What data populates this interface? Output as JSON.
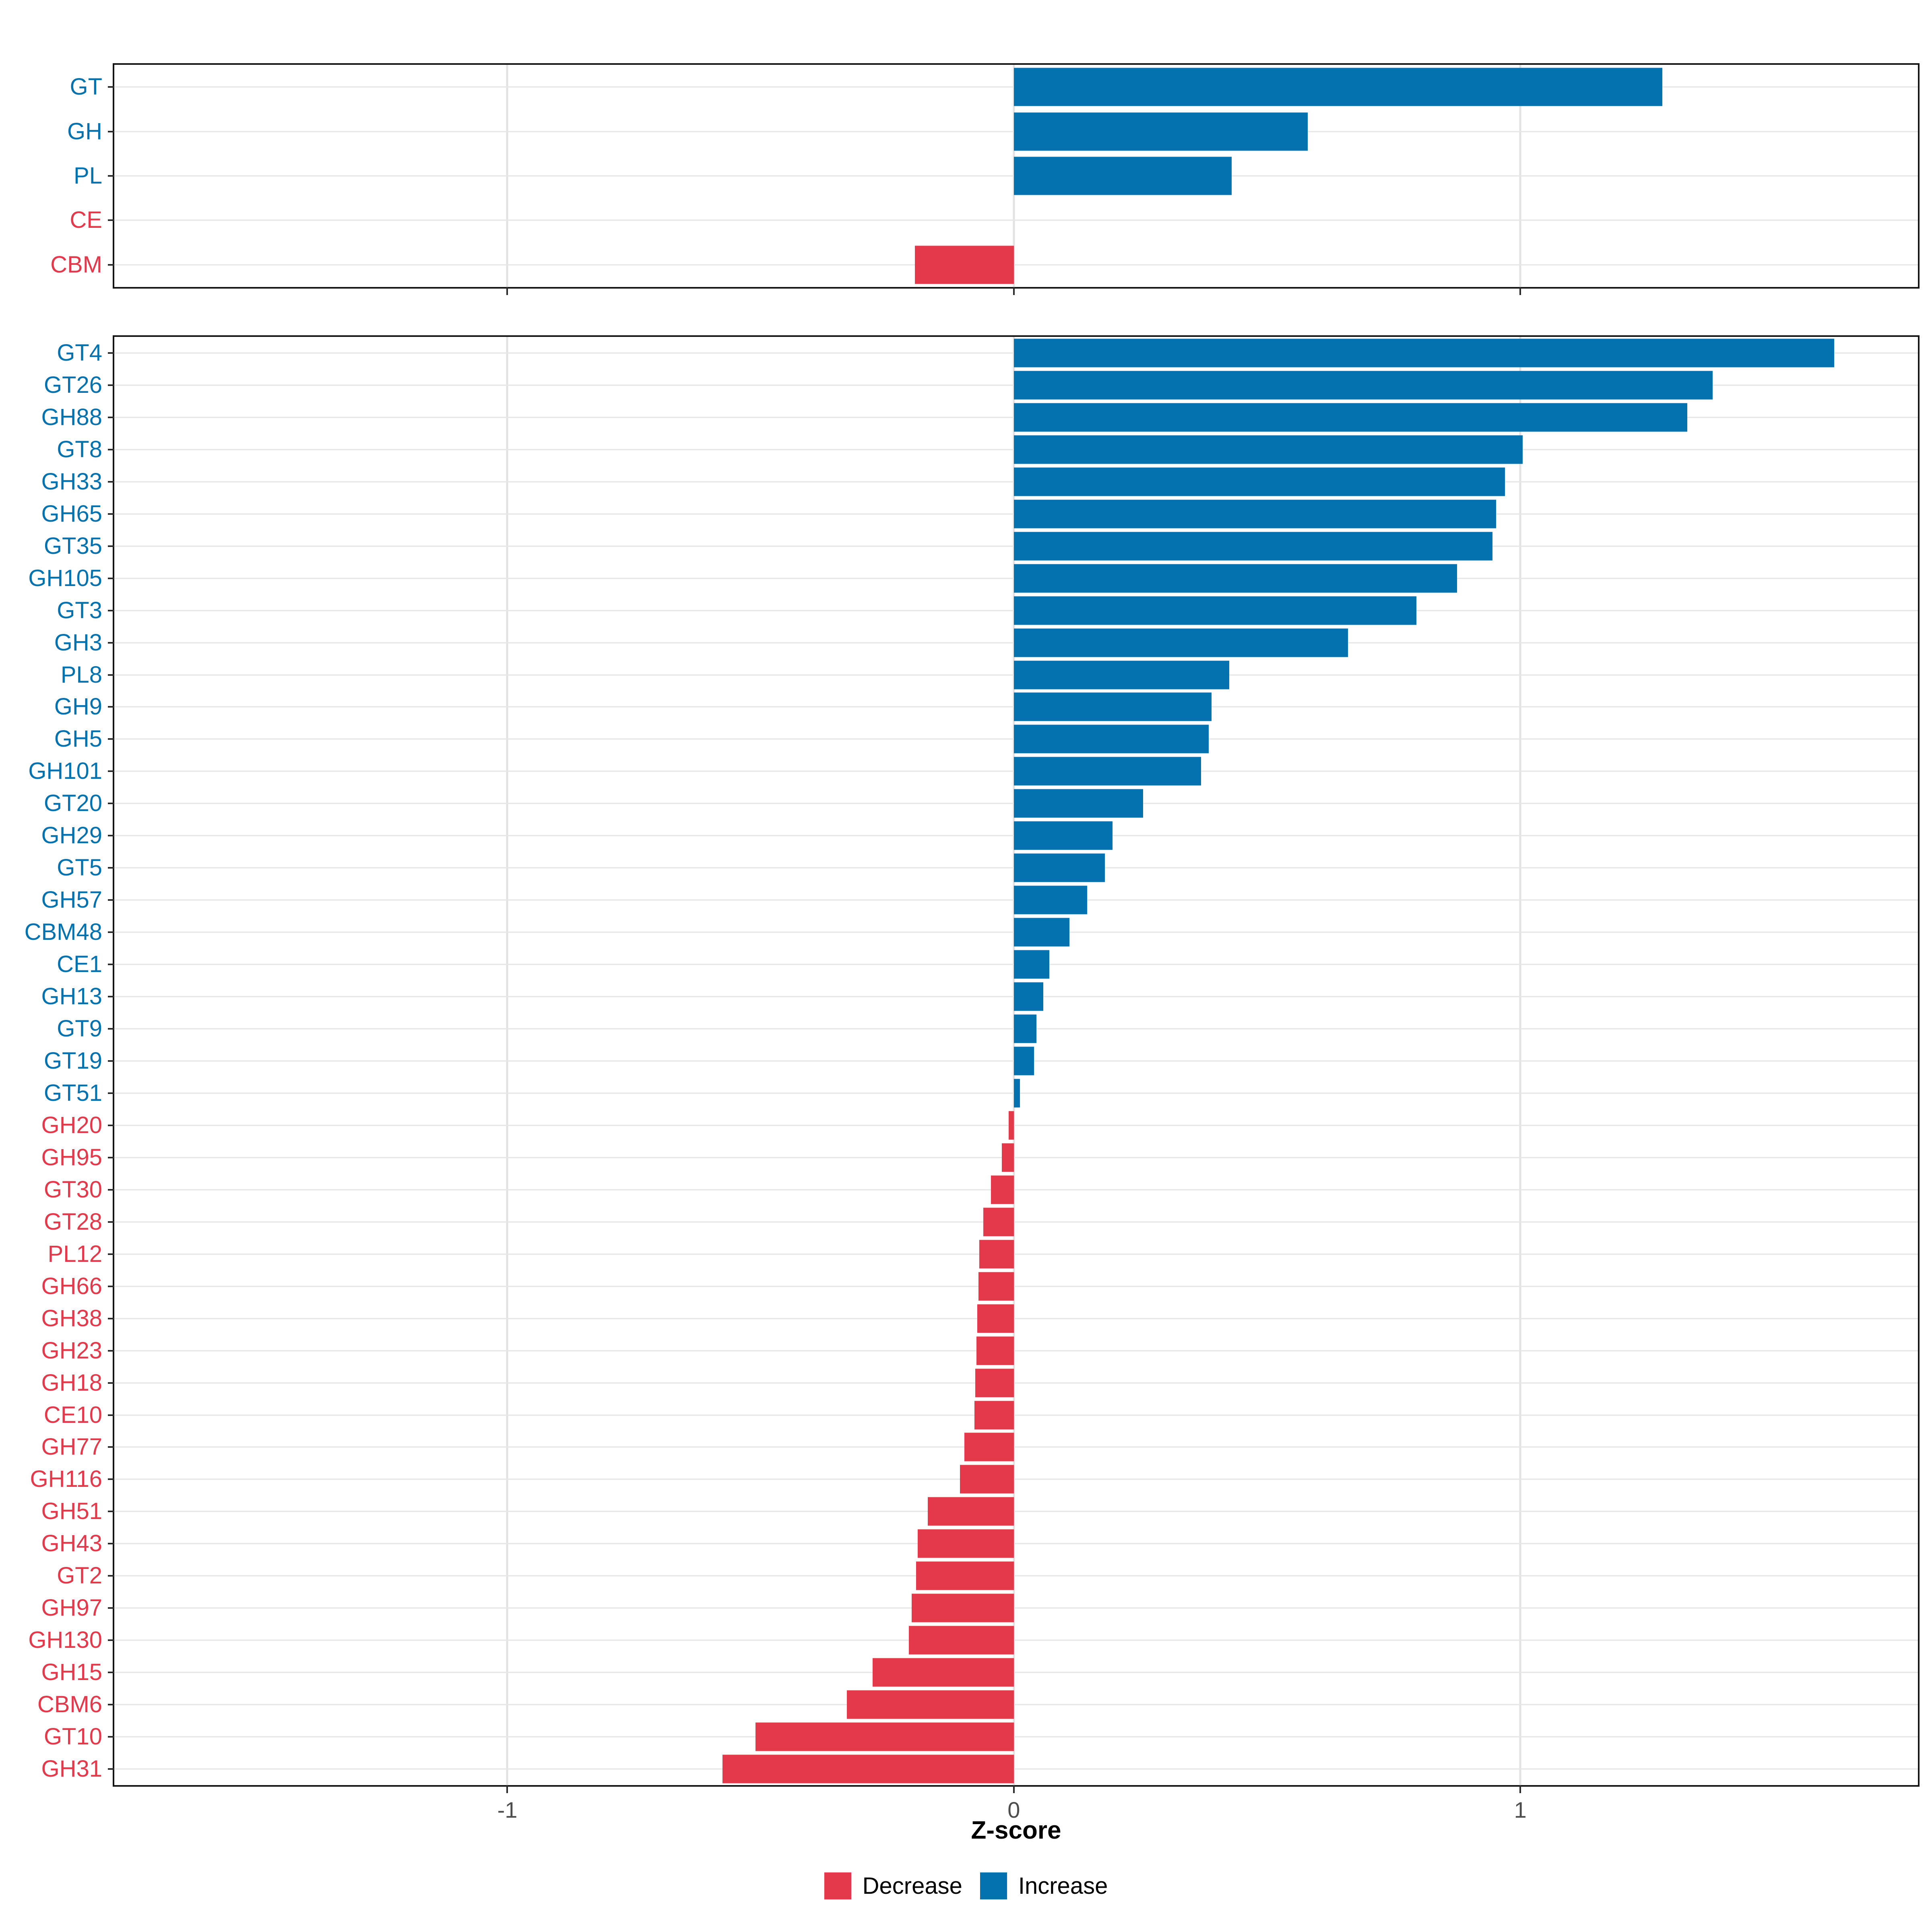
{
  "chart_data": [
    {
      "id": "families",
      "type": "bar",
      "orientation": "horizontal",
      "panel": "top",
      "categories": [
        "GT",
        "GH",
        "PL",
        "CE",
        "CBM"
      ],
      "values": [
        1.28,
        0.58,
        0.43,
        0.0,
        -0.195
      ],
      "groups": [
        "inc",
        "inc",
        "inc",
        "dec",
        "dec"
      ],
      "grid": "major-x-only",
      "show_x_tick_labels": false
    },
    {
      "id": "subfamilies",
      "type": "bar",
      "orientation": "horizontal",
      "panel": "bottom",
      "categories": [
        "GT4",
        "GT26",
        "GH88",
        "GT8",
        "GH33",
        "GH65",
        "GT35",
        "GH105",
        "GT3",
        "GH3",
        "PL8",
        "GH9",
        "GH5",
        "GH101",
        "GT20",
        "GH29",
        "GT5",
        "GH57",
        "CBM48",
        "CE1",
        "GH13",
        "GT9",
        "GT19",
        "GT51",
        "GH20",
        "GH95",
        "GT30",
        "GT28",
        "PL12",
        "GH66",
        "GH38",
        "GH23",
        "GH18",
        "CE10",
        "GH77",
        "GH116",
        "GH51",
        "GH43",
        "GT2",
        "GH97",
        "GH130",
        "GH15",
        "CBM6",
        "GT10",
        "GH31"
      ],
      "values": [
        1.62,
        1.38,
        1.33,
        1.005,
        0.97,
        0.952,
        0.945,
        0.875,
        0.795,
        0.66,
        0.425,
        0.39,
        0.385,
        0.37,
        0.255,
        0.195,
        0.18,
        0.145,
        0.11,
        0.07,
        0.058,
        0.045,
        0.04,
        0.012,
        -0.01,
        -0.024,
        -0.045,
        -0.06,
        -0.068,
        -0.07,
        -0.072,
        -0.074,
        -0.076,
        -0.078,
        -0.098,
        -0.106,
        -0.17,
        -0.19,
        -0.193,
        -0.202,
        -0.207,
        -0.279,
        -0.33,
        -0.51,
        -0.575
      ],
      "groups": [
        "inc",
        "inc",
        "inc",
        "inc",
        "inc",
        "inc",
        "inc",
        "inc",
        "inc",
        "inc",
        "inc",
        "inc",
        "inc",
        "inc",
        "inc",
        "inc",
        "inc",
        "inc",
        "inc",
        "inc",
        "inc",
        "inc",
        "inc",
        "inc",
        "dec",
        "dec",
        "dec",
        "dec",
        "dec",
        "dec",
        "dec",
        "dec",
        "dec",
        "dec",
        "dec",
        "dec",
        "dec",
        "dec",
        "dec",
        "dec",
        "dec",
        "dec",
        "dec",
        "dec",
        "dec"
      ],
      "grid": "major-x-only",
      "show_x_tick_labels": true
    }
  ],
  "xaxis": {
    "label": "Z-score",
    "tick_values": [
      -1,
      0,
      1
    ],
    "tick_labels": [
      "-1",
      "0",
      "1"
    ],
    "domain": [
      -1.776,
      1.785
    ]
  },
  "legend": {
    "items": [
      {
        "key": "dec",
        "label": "Decrease"
      },
      {
        "key": "inc",
        "label": "Increase"
      }
    ]
  },
  "colors": {
    "inc": "#0572B0",
    "dec": "#E4394A",
    "grid": "#E4E4E4",
    "tick": "#2b2b2b",
    "axis_text": "#4D4D4D",
    "panel_border": "#151515"
  }
}
